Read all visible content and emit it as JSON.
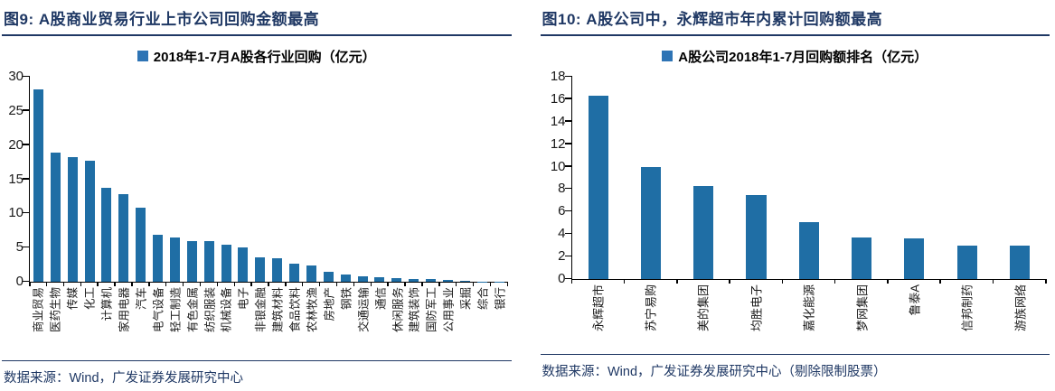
{
  "colors": {
    "bar": "#1F6EA5",
    "legend_marker": "#2E74B5",
    "title_text": "#1F3864",
    "source_text": "#1F3864",
    "rule_line": "#1F3864",
    "axis_line": "#000000"
  },
  "chart_data": [
    {
      "type": "bar",
      "title": "图9:  A股商业贸易行业上市公司回购金额最高",
      "legend": "2018年1-7月A股各行业回购（亿元）",
      "legend_position": "top-center",
      "grid": false,
      "source": "数据来源：Wind，广发证券发展研究中心",
      "ylim": [
        0,
        30
      ],
      "ystep": 5,
      "categories": [
        "商业贸易",
        "医药生物",
        "传媒",
        "化工",
        "计算机",
        "家用电器",
        "汽车",
        "电气设备",
        "轻工制造",
        "有色金属",
        "纺织服装",
        "机械设备",
        "电子",
        "非银金融",
        "建筑材料",
        "食品饮料",
        "农林牧渔",
        "房地产",
        "钢铁",
        "交通运输",
        "通信",
        "休闲服务",
        "建筑装饰",
        "国防军工",
        "公用事业",
        "采掘",
        "综合",
        "银行"
      ],
      "values": [
        28.2,
        18.9,
        18.3,
        17.7,
        13.7,
        12.8,
        10.9,
        6.9,
        6.5,
        5.9,
        5.9,
        5.4,
        5.0,
        3.6,
        3.4,
        2.7,
        2.4,
        1.4,
        1.1,
        0.8,
        0.6,
        0.5,
        0.45,
        0.35,
        0.25,
        0.1,
        0.05,
        0.03
      ]
    },
    {
      "type": "bar",
      "title": "图10:  A股公司中，永辉超市年内累计回购额最高",
      "legend": "A股公司2018年1-7月回购额排名（亿元）",
      "legend_position": "top-center",
      "grid": false,
      "source": "数据来源：Wind，广发证券发展研究中心（剔除限制股票）",
      "ylim": [
        0,
        18
      ],
      "ystep": 2,
      "categories": [
        "永辉超市",
        "苏宁易购",
        "美的集团",
        "均胜电子",
        "嘉化能源",
        "梦网集团",
        "鲁泰A",
        "信邦制药",
        "游族网络"
      ],
      "values": [
        16.3,
        10.0,
        8.25,
        7.45,
        5.1,
        3.7,
        3.65,
        2.95,
        2.95
      ]
    }
  ]
}
